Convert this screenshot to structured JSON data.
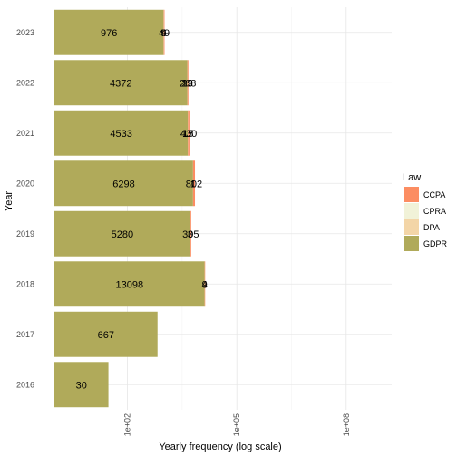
{
  "chart_data": {
    "type": "bar",
    "orientation": "horizontal",
    "stacked": true,
    "xlabel": "Yearly frequency (log scale)",
    "ylabel": "Year",
    "x_scale": "log",
    "x_ticks": [
      "1e+02",
      "1e+05",
      "1e+08"
    ],
    "categories": [
      "2016",
      "2017",
      "2018",
      "2019",
      "2020",
      "2021",
      "2022",
      "2023"
    ],
    "legend": {
      "title": "Law",
      "placement": "right",
      "entries": [
        "CCPA",
        "CPRA",
        "DPA",
        "GDPR"
      ]
    },
    "stack_order": [
      "GDPR",
      "DPA",
      "CPRA",
      "CCPA"
    ],
    "colors": {
      "GDPR": "#b0aa5a",
      "DPA": "#f3d5a7",
      "CPRA": "#f1f2d8",
      "CCPA": "#fc8d62"
    },
    "series": [
      {
        "name": "GDPR",
        "values": [
          30,
          667,
          13098,
          5280,
          6298,
          4533,
          4372,
          976
        ]
      },
      {
        "name": "DPA",
        "values": [
          null,
          null,
          4,
          3,
          1,
          15,
          29,
          9
        ]
      },
      {
        "name": "CPRA",
        "values": [
          null,
          null,
          null,
          null,
          1,
          17,
          13,
          4
        ]
      },
      {
        "name": "CCPA",
        "values": [
          null,
          null,
          9,
          305,
          802,
          430,
          268,
          49
        ]
      }
    ],
    "grid": true
  }
}
